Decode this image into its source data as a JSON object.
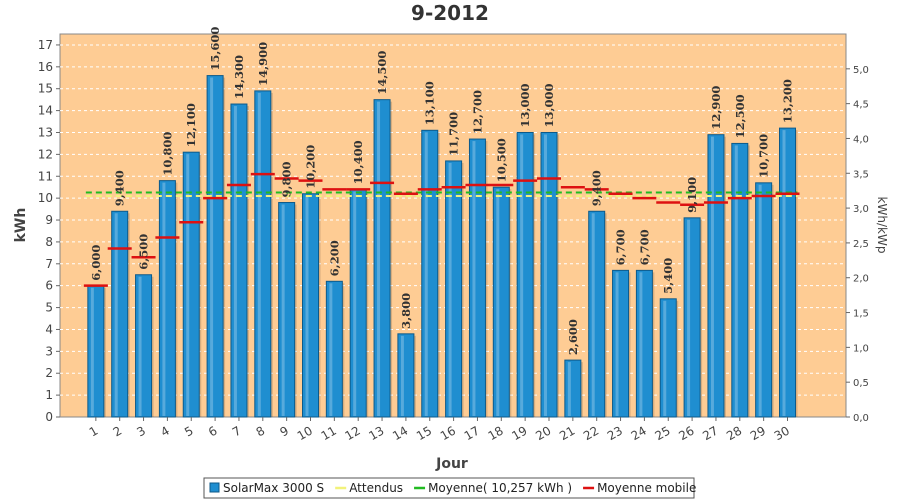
{
  "chart_data": {
    "type": "bar",
    "title": "9-2012",
    "xlabel": "Jour",
    "ylabel": "kWh",
    "ylabel_right": "kWh/kWp",
    "ylim": [
      0,
      17.5
    ],
    "ylim_right": [
      0,
      5.5
    ],
    "yticks": [
      "0",
      "1",
      "2",
      "3",
      "4",
      "5",
      "6",
      "7",
      "8",
      "9",
      "10",
      "11",
      "12",
      "13",
      "14",
      "15",
      "16",
      "17"
    ],
    "yticks_right": [
      "0,0",
      "0,5",
      "1,0",
      "1,5",
      "2,0",
      "2,5",
      "3,0",
      "3,5",
      "4,0",
      "4,5",
      "5,0"
    ],
    "categories": [
      "1",
      "2",
      "3",
      "4",
      "5",
      "6",
      "7",
      "8",
      "9",
      "10",
      "11",
      "12",
      "13",
      "14",
      "15",
      "16",
      "17",
      "18",
      "19",
      "20",
      "21",
      "22",
      "23",
      "24",
      "25",
      "26",
      "27",
      "28",
      "29",
      "30"
    ],
    "series": [
      {
        "name": "SolarMax 3000 S",
        "kind": "bar",
        "color": "#1f8ed0",
        "values": [
          6.0,
          9.4,
          6.5,
          10.8,
          12.1,
          15.6,
          14.3,
          14.9,
          9.8,
          10.2,
          6.2,
          10.4,
          14.5,
          3.8,
          13.1,
          11.7,
          12.7,
          10.5,
          13.0,
          13.0,
          2.6,
          9.4,
          6.7,
          6.7,
          5.4,
          9.1,
          12.9,
          12.5,
          10.7,
          13.2
        ]
      },
      {
        "name": "Attendus",
        "kind": "line",
        "color": "#f2f27a",
        "values": [
          10.1,
          10.1,
          10.1,
          10.1,
          10.1,
          10.1,
          10.1,
          10.1,
          10.1,
          10.1,
          10.1,
          10.1,
          10.1,
          10.1,
          10.1,
          10.1,
          10.1,
          10.1,
          10.1,
          10.1,
          10.1,
          10.1,
          10.1,
          10.1,
          10.1,
          10.1,
          10.1,
          10.1,
          10.1,
          10.1
        ]
      },
      {
        "name": "Moyenne( 10,257 kWh )",
        "kind": "line",
        "color": "#22bb22",
        "values": [
          10.257,
          10.257,
          10.257,
          10.257,
          10.257,
          10.257,
          10.257,
          10.257,
          10.257,
          10.257,
          10.257,
          10.257,
          10.257,
          10.257,
          10.257,
          10.257,
          10.257,
          10.257,
          10.257,
          10.257,
          10.257,
          10.257,
          10.257,
          10.257,
          10.257,
          10.257,
          10.257,
          10.257,
          10.257,
          10.257
        ]
      },
      {
        "name": "Moyenne mobile",
        "kind": "step",
        "color": "#dd1111",
        "values": [
          6.0,
          7.7,
          7.3,
          8.2,
          8.9,
          10.0,
          10.6,
          11.1,
          10.9,
          10.8,
          10.4,
          10.4,
          10.7,
          10.2,
          10.4,
          10.5,
          10.6,
          10.6,
          10.8,
          10.9,
          10.5,
          10.4,
          10.2,
          10.0,
          9.8,
          9.7,
          9.8,
          10.0,
          10.1,
          10.2
        ]
      }
    ],
    "data_labels": [
      "6,000",
      "9,400",
      "6,500",
      "10,800",
      "12,100",
      "15,600",
      "14,300",
      "14,900",
      "9,800",
      "10,200",
      "6,200",
      "10,400",
      "14,500",
      "3,800",
      "13,100",
      "11,700",
      "12,700",
      "10,500",
      "13,000",
      "13,000",
      "2,600",
      "9,400",
      "6,700",
      "6,700",
      "5,400",
      "9,100",
      "12,900",
      "12,500",
      "10,700",
      "13,200"
    ],
    "grid": true,
    "legend": "bottom",
    "colors": {
      "plot_bg": "#fecc94",
      "bar": "#1f8ed0",
      "bar_edge": "#0d5a8a",
      "grid": "#ffffff"
    }
  }
}
